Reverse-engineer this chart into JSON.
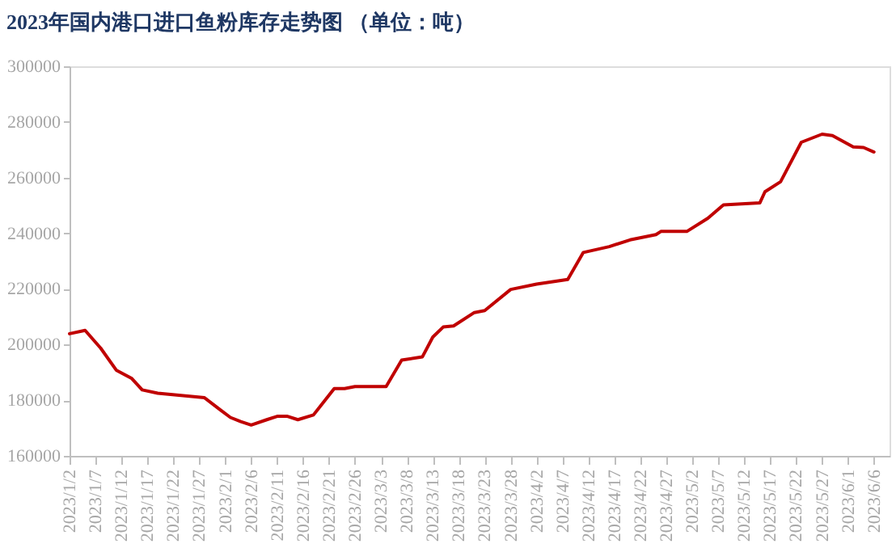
{
  "chart_data": {
    "type": "line",
    "title": "2023年国内港口进口鱼粉库存走势图  （单位：吨）",
    "x": [
      "2023-01-02",
      "2023-01-05",
      "2023-01-08",
      "2023-01-11",
      "2023-01-14",
      "2023-01-16",
      "2023-01-19",
      "2023-01-28",
      "2023-01-31",
      "2023-02-02",
      "2023-02-04",
      "2023-02-06",
      "2023-02-09",
      "2023-02-11",
      "2023-02-13",
      "2023-02-15",
      "2023-02-18",
      "2023-02-22",
      "2023-02-24",
      "2023-02-26",
      "2023-03-04",
      "2023-03-07",
      "2023-03-11",
      "2023-03-13",
      "2023-03-15",
      "2023-03-17",
      "2023-03-21",
      "2023-03-23",
      "2023-03-28",
      "2023-04-02",
      "2023-04-08",
      "2023-04-11",
      "2023-04-16",
      "2023-04-20",
      "2023-04-25",
      "2023-04-26",
      "2023-05-01",
      "2023-05-05",
      "2023-05-08",
      "2023-05-15",
      "2023-05-16",
      "2023-05-19",
      "2023-05-23",
      "2023-05-27",
      "2023-05-29",
      "2023-06-02",
      "2023-06-04",
      "2023-06-06"
    ],
    "series": [
      {
        "color": "#c00000",
        "values": [
          203900,
          205100,
          198700,
          190800,
          187800,
          183700,
          182500,
          180900,
          176600,
          173800,
          172300,
          171100,
          173000,
          174200,
          174200,
          173000,
          174700,
          184200,
          184200,
          184900,
          184900,
          194400,
          195600,
          202700,
          206300,
          206700,
          211500,
          212200,
          219800,
          221700,
          223400,
          233100,
          235200,
          237600,
          239500,
          240700,
          240700,
          245400,
          250200,
          250900,
          254900,
          258500,
          272700,
          275600,
          275100,
          271000,
          270800,
          269200
        ]
      }
    ],
    "xlim": [
      "2023-01-02",
      "2023-06-09"
    ],
    "xticks": [
      {
        "value": "2023-01-02",
        "label": "2023/1/2"
      },
      {
        "value": "2023-01-07",
        "label": "2023/1/7"
      },
      {
        "value": "2023-01-12",
        "label": "2023/1/12"
      },
      {
        "value": "2023-01-17",
        "label": "2023/1/17"
      },
      {
        "value": "2023-01-22",
        "label": "2023/1/22"
      },
      {
        "value": "2023-01-27",
        "label": "2023/1/27"
      },
      {
        "value": "2023-02-01",
        "label": "2023/2/1"
      },
      {
        "value": "2023-02-06",
        "label": "2023/2/6"
      },
      {
        "value": "2023-02-11",
        "label": "2023/2/11"
      },
      {
        "value": "2023-02-16",
        "label": "2023/2/16"
      },
      {
        "value": "2023-02-21",
        "label": "2023/2/21"
      },
      {
        "value": "2023-02-26",
        "label": "2023/2/26"
      },
      {
        "value": "2023-03-03",
        "label": "2023/3/3"
      },
      {
        "value": "2023-03-08",
        "label": "2023/3/8"
      },
      {
        "value": "2023-03-13",
        "label": "2023/3/13"
      },
      {
        "value": "2023-03-18",
        "label": "2023/3/18"
      },
      {
        "value": "2023-03-23",
        "label": "2023/3/23"
      },
      {
        "value": "2023-03-28",
        "label": "2023/3/28"
      },
      {
        "value": "2023-04-02",
        "label": "2023/4/2"
      },
      {
        "value": "2023-04-07",
        "label": "2023/4/7"
      },
      {
        "value": "2023-04-12",
        "label": "2023/4/12"
      },
      {
        "value": "2023-04-17",
        "label": "2023/4/17"
      },
      {
        "value": "2023-04-22",
        "label": "2023/4/22"
      },
      {
        "value": "2023-04-27",
        "label": "2023/4/27"
      },
      {
        "value": "2023-05-02",
        "label": "2023/5/2"
      },
      {
        "value": "2023-05-07",
        "label": "2023/5/7"
      },
      {
        "value": "2023-05-12",
        "label": "2023/5/12"
      },
      {
        "value": "2023-05-17",
        "label": "2023/5/17"
      },
      {
        "value": "2023-05-22",
        "label": "2023/5/22"
      },
      {
        "value": "2023-05-27",
        "label": "2023/5/27"
      },
      {
        "value": "2023-06-01",
        "label": "2023/6/1"
      },
      {
        "value": "2023-06-06",
        "label": "2023/6/6"
      }
    ],
    "ylim": [
      160000,
      300000
    ],
    "yticks": [
      160000,
      180000,
      200000,
      220000,
      240000,
      260000,
      280000,
      300000
    ],
    "grid": false,
    "legend": false,
    "marker": "none",
    "line_style": "solid"
  }
}
